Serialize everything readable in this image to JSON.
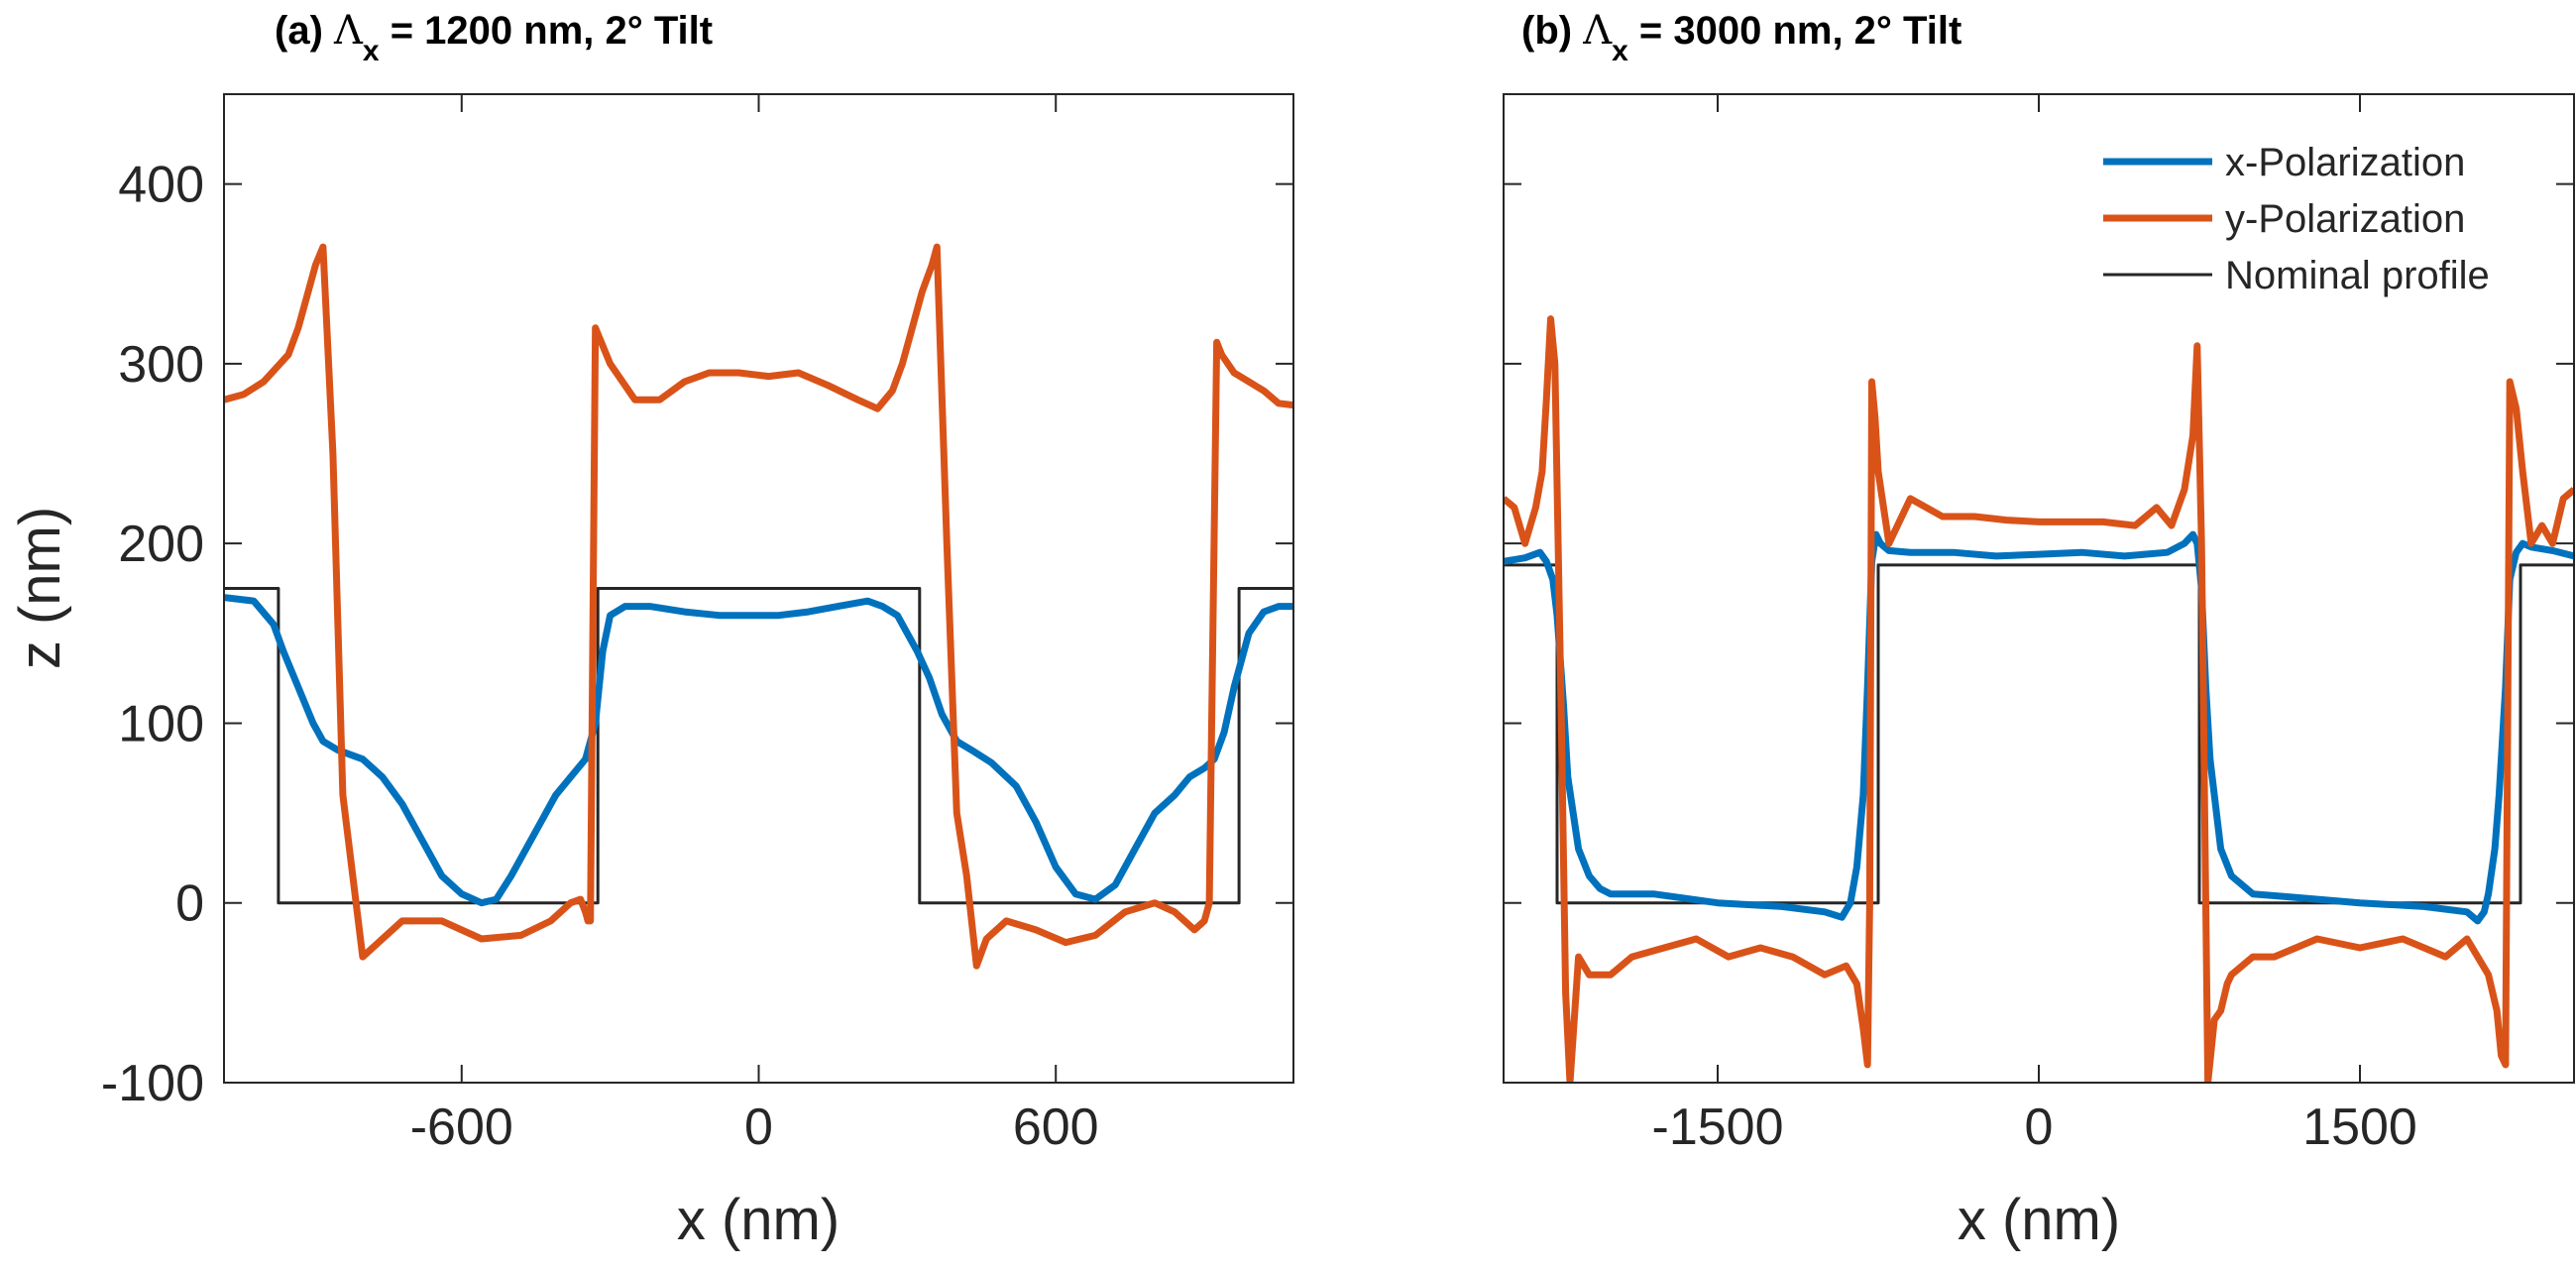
{
  "chart_data": [
    {
      "type": "line",
      "title_prefix": "(a) ",
      "title_symbol": "Λ",
      "title_sub": "x",
      "title_rest": " = 1200 nm, 2° Tilt",
      "xlabel": "x (nm)",
      "ylabel": "z (nm)",
      "xlim": [
        -1080,
        1080
      ],
      "ylim": [
        -100,
        450
      ],
      "xticks": [
        -600,
        0,
        600
      ],
      "xtick_labels": [
        "-600",
        "0",
        "600"
      ],
      "yticks": [
        -100,
        0,
        100,
        200,
        300,
        400
      ],
      "ytick_labels": [
        "-100",
        "0",
        "100",
        "200",
        "300",
        "400"
      ],
      "grid": false,
      "series": [
        {
          "name": "Nominal profile",
          "color": "#262626",
          "line_width": 3,
          "x": [
            -1080,
            -970,
            -970,
            -325,
            -325,
            325,
            325,
            970,
            970,
            1080
          ],
          "y": [
            175,
            175,
            0,
            0,
            175,
            175,
            0,
            0,
            175,
            175
          ]
        },
        {
          "name": "x-Polarization",
          "color": "#0072BD",
          "line_width": 7,
          "x": [
            -1080,
            -1020,
            -980,
            -960,
            -930,
            -900,
            -880,
            -850,
            -800,
            -760,
            -720,
            -680,
            -640,
            -600,
            -560,
            -530,
            -500,
            -470,
            -440,
            -410,
            -380,
            -350,
            -340,
            -330,
            -315,
            -300,
            -270,
            -220,
            -150,
            -80,
            -20,
            40,
            100,
            160,
            220,
            250,
            280,
            300,
            320,
            345,
            370,
            400,
            430,
            470,
            520,
            560,
            600,
            640,
            680,
            720,
            760,
            800,
            840,
            870,
            900,
            920,
            940,
            960,
            990,
            1020,
            1050,
            1080
          ],
          "y": [
            170,
            168,
            155,
            140,
            120,
            100,
            90,
            85,
            80,
            70,
            55,
            35,
            15,
            5,
            0,
            2,
            15,
            30,
            45,
            60,
            70,
            80,
            90,
            100,
            140,
            160,
            165,
            165,
            162,
            160,
            160,
            160,
            162,
            165,
            168,
            165,
            160,
            150,
            140,
            125,
            105,
            90,
            85,
            78,
            65,
            45,
            20,
            5,
            2,
            10,
            30,
            50,
            60,
            70,
            75,
            80,
            95,
            120,
            150,
            162,
            165,
            165
          ]
        },
        {
          "name": "y-Polarization",
          "color": "#D95319",
          "line_width": 7,
          "x": [
            -1080,
            -1040,
            -1000,
            -950,
            -930,
            -910,
            -895,
            -880,
            -860,
            -840,
            -800,
            -720,
            -640,
            -560,
            -480,
            -420,
            -380,
            -360,
            -350,
            -345,
            -340,
            -330,
            -300,
            -250,
            -200,
            -150,
            -100,
            -40,
            20,
            80,
            140,
            200,
            240,
            270,
            290,
            310,
            330,
            350,
            360,
            380,
            400,
            420,
            440,
            460,
            500,
            560,
            620,
            680,
            740,
            800,
            840,
            880,
            900,
            910,
            925,
            935,
            960,
            990,
            1020,
            1050,
            1080
          ],
          "y": [
            280,
            283,
            290,
            305,
            320,
            340,
            355,
            365,
            250,
            60,
            -30,
            -10,
            -10,
            -20,
            -18,
            -10,
            0,
            2,
            -5,
            -10,
            -10,
            320,
            300,
            280,
            280,
            290,
            295,
            295,
            293,
            295,
            288,
            280,
            275,
            285,
            300,
            320,
            340,
            355,
            365,
            200,
            50,
            15,
            -35,
            -20,
            -10,
            -15,
            -22,
            -18,
            -5,
            0,
            -5,
            -15,
            -10,
            0,
            312,
            305,
            295,
            290,
            285,
            278,
            277
          ]
        }
      ]
    },
    {
      "type": "line",
      "title_prefix": "(b) ",
      "title_symbol": "Λ",
      "title_sub": "x",
      "title_rest": " = 3000 nm, 2° Tilt",
      "xlabel": "x (nm)",
      "ylabel": "",
      "xlim": [
        -2500,
        2500
      ],
      "ylim": [
        -100,
        450
      ],
      "xticks": [
        -1500,
        0,
        1500
      ],
      "xtick_labels": [
        "-1500",
        "0",
        "1500"
      ],
      "yticks": [
        -100,
        0,
        100,
        200,
        300,
        400
      ],
      "ytick_labels": [],
      "grid": false,
      "legend": {
        "location": "top-right",
        "entries": [
          "x-Polarization",
          "y-Polarization",
          "Nominal profile"
        ]
      },
      "series": [
        {
          "name": "Nominal profile",
          "color": "#262626",
          "line_width": 3,
          "x": [
            -2500,
            -2250,
            -2250,
            -750,
            -750,
            750,
            750,
            2250,
            2250,
            2500
          ],
          "y": [
            188,
            188,
            0,
            0,
            188,
            188,
            0,
            0,
            188,
            188
          ]
        },
        {
          "name": "x-Polarization",
          "color": "#0072BD",
          "line_width": 7,
          "x": [
            -2500,
            -2400,
            -2330,
            -2300,
            -2270,
            -2250,
            -2220,
            -2200,
            -2150,
            -2100,
            -2050,
            -2000,
            -1800,
            -1500,
            -1200,
            -1000,
            -920,
            -880,
            -850,
            -820,
            -800,
            -780,
            -760,
            -740,
            -700,
            -600,
            -400,
            -200,
            0,
            200,
            400,
            600,
            680,
            720,
            740,
            760,
            780,
            800,
            850,
            900,
            1000,
            1200,
            1500,
            1800,
            2000,
            2050,
            2080,
            2100,
            2130,
            2150,
            2180,
            2200,
            2230,
            2260,
            2300,
            2400,
            2500
          ],
          "y": [
            190,
            192,
            195,
            190,
            180,
            160,
            110,
            70,
            30,
            15,
            8,
            5,
            5,
            0,
            -2,
            -5,
            -8,
            0,
            20,
            60,
            120,
            190,
            205,
            200,
            196,
            195,
            195,
            193,
            194,
            195,
            193,
            195,
            200,
            205,
            200,
            175,
            120,
            80,
            30,
            15,
            5,
            3,
            0,
            -2,
            -5,
            -10,
            -5,
            5,
            30,
            60,
            120,
            180,
            195,
            200,
            198,
            196,
            193
          ]
        },
        {
          "name": "y-Polarization",
          "color": "#D95319",
          "line_width": 7,
          "x": [
            -2500,
            -2450,
            -2400,
            -2350,
            -2320,
            -2300,
            -2280,
            -2260,
            -2230,
            -2210,
            -2190,
            -2150,
            -2100,
            -2000,
            -1900,
            -1750,
            -1600,
            -1450,
            -1300,
            -1150,
            -1000,
            -900,
            -850,
            -820,
            -800,
            -790,
            -780,
            -765,
            -750,
            -700,
            -600,
            -450,
            -300,
            -150,
            0,
            150,
            300,
            450,
            550,
            620,
            680,
            720,
            740,
            760,
            775,
            790,
            820,
            850,
            880,
            900,
            1000,
            1100,
            1300,
            1500,
            1700,
            1900,
            2000,
            2050,
            2100,
            2140,
            2160,
            2180,
            2200,
            2230,
            2260,
            2300,
            2350,
            2400,
            2450,
            2500
          ],
          "y": [
            225,
            220,
            200,
            220,
            240,
            280,
            325,
            300,
            100,
            -50,
            -100,
            -30,
            -40,
            -40,
            -30,
            -25,
            -20,
            -30,
            -25,
            -30,
            -40,
            -35,
            -45,
            -70,
            -90,
            0,
            290,
            270,
            240,
            200,
            225,
            215,
            215,
            213,
            212,
            212,
            212,
            210,
            220,
            210,
            230,
            260,
            310,
            200,
            50,
            -100,
            -65,
            -60,
            -45,
            -40,
            -30,
            -30,
            -20,
            -25,
            -20,
            -30,
            -20,
            -30,
            -40,
            -60,
            -85,
            -90,
            290,
            275,
            240,
            200,
            210,
            200,
            225,
            230
          ]
        }
      ]
    }
  ]
}
